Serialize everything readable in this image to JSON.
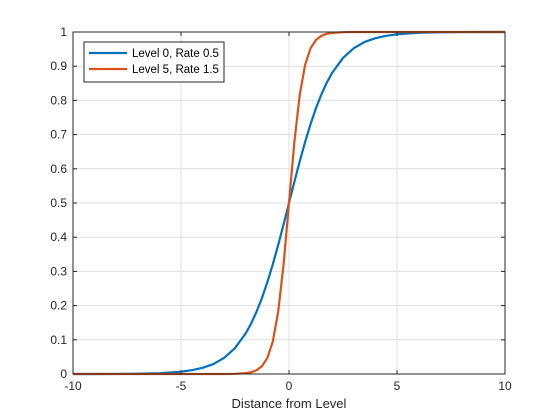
{
  "chart_data": {
    "type": "line",
    "title": "",
    "xlabel": "Distance from Level",
    "ylabel": "",
    "xlim": [
      -10,
      10
    ],
    "ylim": [
      0,
      1
    ],
    "xticks": [
      -10,
      -5,
      0,
      5,
      10
    ],
    "xtick_labels": [
      "-10",
      "-5",
      "0",
      "5",
      "10"
    ],
    "yticks": [
      0,
      0.1,
      0.2,
      0.3,
      0.4,
      0.5,
      0.6,
      0.7,
      0.8,
      0.9,
      1
    ],
    "ytick_labels": [
      "0",
      "0.1",
      "0.2",
      "0.3",
      "0.4",
      "0.5",
      "0.6",
      "0.7",
      "0.8",
      "0.9",
      "1"
    ],
    "grid": true,
    "legend_position": "top-left",
    "x": [
      -10,
      -9,
      -8,
      -7,
      -6,
      -5,
      -4.5,
      -4,
      -3.5,
      -3,
      -2.5,
      -2,
      -1.75,
      -1.5,
      -1.25,
      -1,
      -0.75,
      -0.5,
      -0.25,
      0,
      0.25,
      0.5,
      0.75,
      1,
      1.25,
      1.5,
      1.75,
      2,
      2.5,
      3,
      3.5,
      4,
      4.5,
      5,
      6,
      7,
      8,
      9,
      10
    ],
    "series": [
      {
        "name": "Level 0, Rate 0.5",
        "color": "#0072BD",
        "values": [
          0.0,
          0.0,
          0.0002,
          0.0007,
          0.0022,
          0.0067,
          0.0111,
          0.018,
          0.029,
          0.0474,
          0.0759,
          0.1192,
          0.148,
          0.1824,
          0.2227,
          0.2689,
          0.3208,
          0.3775,
          0.4378,
          0.5,
          0.5622,
          0.6225,
          0.6792,
          0.7311,
          0.7773,
          0.8176,
          0.852,
          0.8808,
          0.9241,
          0.9526,
          0.971,
          0.982,
          0.9889,
          0.9933,
          0.9978,
          0.9993,
          0.9998,
          1.0,
          1.0
        ]
      },
      {
        "name": "Level 5, Rate 1.5",
        "color": "#D95319",
        "values": [
          0.0,
          0.0,
          0.0,
          0.0,
          0.0,
          0.0,
          0.0,
          0.0,
          0.0,
          0.0001,
          0.0006,
          0.0025,
          0.0052,
          0.0111,
          0.023,
          0.0474,
          0.0948,
          0.1824,
          0.3208,
          0.5,
          0.6792,
          0.8176,
          0.9052,
          0.9526,
          0.977,
          0.9889,
          0.9948,
          0.9975,
          0.9994,
          0.9999,
          1.0,
          1.0,
          1.0,
          1.0,
          1.0,
          1.0,
          1.0,
          1.0,
          1.0
        ]
      }
    ]
  }
}
